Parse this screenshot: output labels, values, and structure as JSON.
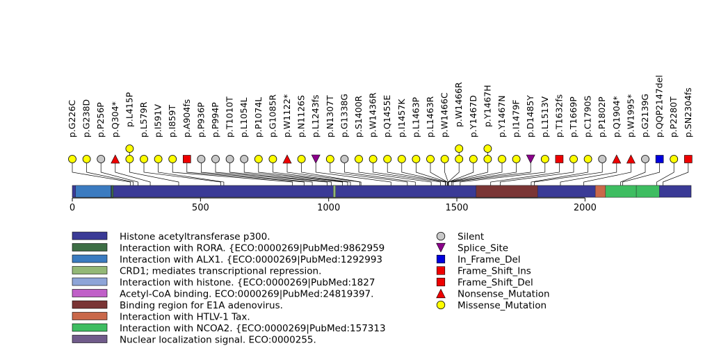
{
  "protein": {
    "length": 2414
  },
  "axis": {
    "ticks": [
      0,
      500,
      1000,
      1500,
      2000
    ]
  },
  "colors": {
    "protein_base": "#3a3a96",
    "silent": "#c8c8c8",
    "splice": "#8b008b",
    "in_frame_del": "#0000dd",
    "frame_shift": "#ee0000",
    "nonsense": "#ee0000",
    "missense": "#ffff00"
  },
  "domains": [
    {
      "start": 13,
      "end": 150,
      "color": "#3b7bc0"
    },
    {
      "start": 153,
      "end": 160,
      "color": "#3d6e45"
    },
    {
      "start": 1018,
      "end": 1027,
      "color": "#93b876"
    },
    {
      "start": 1575,
      "end": 1815,
      "color": "#7a3535"
    },
    {
      "start": 2040,
      "end": 2080,
      "color": "#c9684a"
    },
    {
      "start": 2080,
      "end": 2200,
      "color": "#3ebd61"
    },
    {
      "start": 2200,
      "end": 2290,
      "color": "#3ebd61"
    }
  ],
  "mutations": [
    {
      "label": "p.G226C",
      "pos": 226,
      "type": "missense"
    },
    {
      "label": "p.G238D",
      "pos": 238,
      "type": "missense"
    },
    {
      "label": "p.P256P",
      "pos": 256,
      "type": "silent"
    },
    {
      "label": "p.Q304*",
      "pos": 304,
      "type": "nonsense"
    },
    {
      "label": "p.L415P",
      "pos": 415,
      "type": "missense",
      "stack": 2
    },
    {
      "label": "p.L579R",
      "pos": 579,
      "type": "missense"
    },
    {
      "label": "p.I591V",
      "pos": 591,
      "type": "missense"
    },
    {
      "label": "p.I859T",
      "pos": 859,
      "type": "missense"
    },
    {
      "label": "p.A904fs",
      "pos": 904,
      "type": "frame_shift"
    },
    {
      "label": "p.P936P",
      "pos": 936,
      "type": "silent"
    },
    {
      "label": "p.P994P",
      "pos": 994,
      "type": "silent"
    },
    {
      "label": "p.T1010T",
      "pos": 1010,
      "type": "silent"
    },
    {
      "label": "p.L1054L",
      "pos": 1054,
      "type": "silent"
    },
    {
      "label": "p.P1074L",
      "pos": 1074,
      "type": "missense"
    },
    {
      "label": "p.G1085R",
      "pos": 1085,
      "type": "missense"
    },
    {
      "label": "p.W1122*",
      "pos": 1122,
      "type": "nonsense"
    },
    {
      "label": "p.N1126S",
      "pos": 1126,
      "type": "missense"
    },
    {
      "label": "p.L1243fs",
      "pos": 1243,
      "type": "splice"
    },
    {
      "label": "p.N1307T",
      "pos": 1307,
      "type": "missense"
    },
    {
      "label": "p.G1338G",
      "pos": 1338,
      "type": "silent"
    },
    {
      "label": "p.S1400R",
      "pos": 1400,
      "type": "missense"
    },
    {
      "label": "p.W1436R",
      "pos": 1436,
      "type": "missense"
    },
    {
      "label": "p.Q1455E",
      "pos": 1455,
      "type": "missense"
    },
    {
      "label": "p.I1457K",
      "pos": 1457,
      "type": "missense"
    },
    {
      "label": "p.L1463P",
      "pos": 1463,
      "type": "missense"
    },
    {
      "label": "p.L1463R",
      "pos": 1463,
      "type": "missense"
    },
    {
      "label": "p.W1466C",
      "pos": 1466,
      "type": "missense"
    },
    {
      "label": "p.W1466R",
      "pos": 1466,
      "type": "missense",
      "stack": 2
    },
    {
      "label": "p.Y1467D",
      "pos": 1467,
      "type": "missense"
    },
    {
      "label": "p.Y1467H",
      "pos": 1467,
      "type": "missense",
      "stack": 2
    },
    {
      "label": "p.Y1467N",
      "pos": 1467,
      "type": "missense"
    },
    {
      "label": "p.I1479F",
      "pos": 1479,
      "type": "missense"
    },
    {
      "label": "p.D1485Y",
      "pos": 1485,
      "type": "splice"
    },
    {
      "label": "p.L1513V",
      "pos": 1513,
      "type": "missense"
    },
    {
      "label": "p.T1632fs",
      "pos": 1632,
      "type": "frame_shift"
    },
    {
      "label": "p.T1669P",
      "pos": 1669,
      "type": "missense"
    },
    {
      "label": "p.C1790S",
      "pos": 1790,
      "type": "missense"
    },
    {
      "label": "p.P1802P",
      "pos": 1802,
      "type": "silent"
    },
    {
      "label": "p.Q1904*",
      "pos": 1904,
      "type": "nonsense"
    },
    {
      "label": "p.W1995*",
      "pos": 1995,
      "type": "nonsense"
    },
    {
      "label": "p.G2139G",
      "pos": 2139,
      "type": "silent"
    },
    {
      "label": "p.QQP2147del",
      "pos": 2147,
      "type": "in_frame_del"
    },
    {
      "label": "p.P2280T",
      "pos": 2280,
      "type": "missense"
    },
    {
      "label": "p.SN2304fs",
      "pos": 2304,
      "type": "frame_shift"
    }
  ],
  "legend_domains": [
    {
      "label": "Histone acetyltransferase p300.",
      "color": "#3a3a96"
    },
    {
      "label": "Interaction with RORA. {ECO:0000269|PubMed:9862959",
      "color": "#3d6e45"
    },
    {
      "label": "Interaction with ALX1. {ECO:0000269|PubMed:1292993",
      "color": "#3b7bc0"
    },
    {
      "label": "CRD1; mediates transcriptional repression.",
      "color": "#93b876"
    },
    {
      "label": "Interaction with histone. {ECO:0000269|PubMed:1827",
      "color": "#8ea5d8"
    },
    {
      "label": "Acetyl-CoA binding. ECO:0000269|PubMed:24819397.",
      "color": "#c060c8"
    },
    {
      "label": "Binding region for E1A adenovirus.",
      "color": "#7a3535"
    },
    {
      "label": "Interaction with HTLV-1 Tax.",
      "color": "#c9684a"
    },
    {
      "label": "Interaction with NCOA2. {ECO:0000269|PubMed:157313",
      "color": "#3ebd61"
    },
    {
      "label": "Nuclear localization signal. ECO:0000255.",
      "color": "#705b8a"
    }
  ],
  "legend_mutations": [
    {
      "label": "Silent",
      "type": "silent"
    },
    {
      "label": "Splice_Site",
      "type": "splice"
    },
    {
      "label": "In_Frame_Del",
      "type": "in_frame_del"
    },
    {
      "label": "Frame_Shift_Ins",
      "type": "frame_shift"
    },
    {
      "label": "Frame_Shift_Del",
      "type": "frame_shift"
    },
    {
      "label": "Nonsense_Mutation",
      "type": "nonsense"
    },
    {
      "label": "Missense_Mutation",
      "type": "missense"
    }
  ]
}
